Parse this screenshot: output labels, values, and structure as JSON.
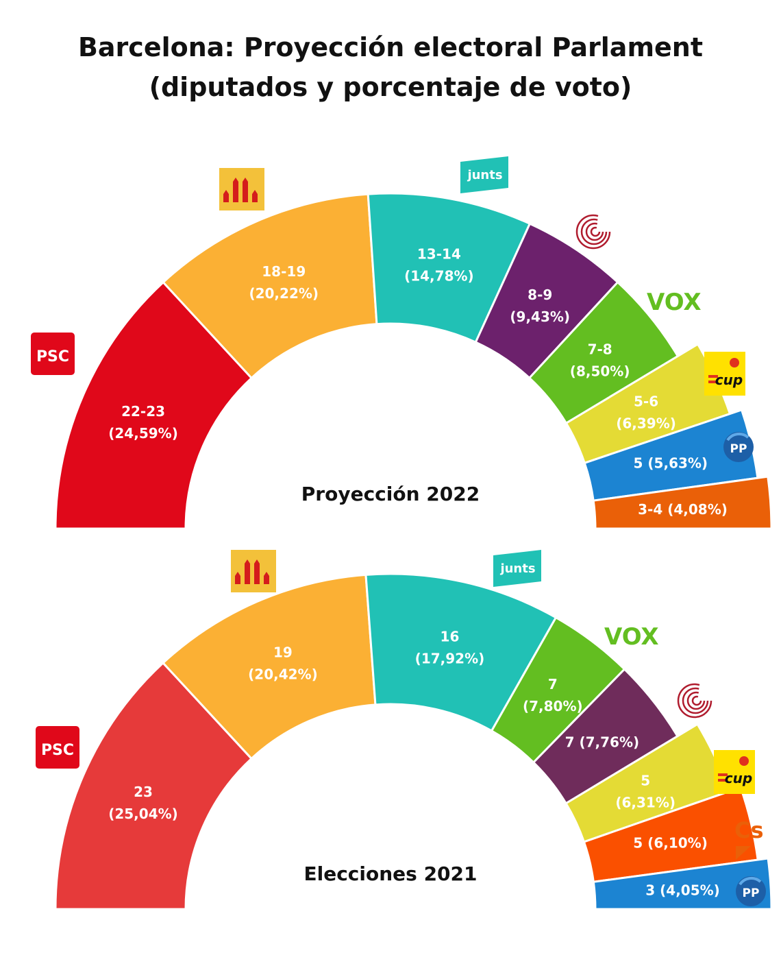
{
  "title_line1": "Barcelona: Proyección electoral Parlament",
  "title_line2": "(diputados y porcentaje de voto)",
  "chart_data": [
    {
      "type": "pie",
      "subtitle": "Proyección 2022",
      "series": [
        {
          "name": "PSC",
          "seats": "22-23",
          "value": 24.59,
          "pct_label": "(24,59%)",
          "color": "#e0081a"
        },
        {
          "name": "ERC",
          "seats": "18-19",
          "value": 20.22,
          "pct_label": "(20,22%)",
          "color": "#fbb034"
        },
        {
          "name": "junts",
          "seats": "13-14",
          "value": 14.78,
          "pct_label": "(14,78%)",
          "color": "#21c1b5"
        },
        {
          "name": "En Comú Podem",
          "seats": "8-9",
          "value": 9.43,
          "pct_label": "(9,43%)",
          "color": "#6c216c"
        },
        {
          "name": "VOX",
          "seats": "7-8",
          "value": 8.5,
          "pct_label": "(8,50%)",
          "color": "#63be21"
        },
        {
          "name": "CUP",
          "seats": "5-6",
          "value": 6.39,
          "pct_label": "(6,39%)",
          "color": "#e4db35"
        },
        {
          "name": "PP",
          "seats": "5",
          "value": 5.63,
          "pct_label": "5 (5,63%)",
          "color": "#1c84d2"
        },
        {
          "name": "Cs",
          "seats": "3-4",
          "value": 4.08,
          "pct_label": "3-4 (4,08%)",
          "color": "#ea6008"
        }
      ]
    },
    {
      "type": "pie",
      "subtitle": "Elecciones 2021",
      "series": [
        {
          "name": "PSC",
          "seats": "23",
          "value": 25.04,
          "pct_label": "(25,04%)",
          "color": "#e63a3a"
        },
        {
          "name": "ERC",
          "seats": "19",
          "value": 20.42,
          "pct_label": "(20,42%)",
          "color": "#fbb034"
        },
        {
          "name": "junts",
          "seats": "16",
          "value": 17.92,
          "pct_label": "(17,92%)",
          "color": "#21c1b5"
        },
        {
          "name": "VOX",
          "seats": "7",
          "value": 7.8,
          "pct_label": "(7,80%)",
          "color": "#63be21"
        },
        {
          "name": "En Comú Podem",
          "seats": "7",
          "value": 7.76,
          "pct_label": "7 (7,76%)",
          "color": "#6f2c5b"
        },
        {
          "name": "CUP",
          "seats": "5",
          "value": 6.31,
          "pct_label": "(6,31%)",
          "color": "#e4db35"
        },
        {
          "name": "Cs",
          "seats": "5",
          "value": 6.1,
          "pct_label": "5 (6,10%)",
          "color": "#fa5000"
        },
        {
          "name": "PP",
          "seats": "3",
          "value": 4.05,
          "pct_label": "3 (4,05%)",
          "color": "#1c84d2"
        }
      ]
    }
  ],
  "logos": {
    "psc_text": "PSC",
    "junts_text": "junts",
    "vox_text": "VOX",
    "cup_text": "cup",
    "pp_text": "PP",
    "cs_text": "Cs",
    "psc_color": "#e0081a",
    "erc_color": "#f3c13a",
    "junts_color": "#21c1b5",
    "vox_color": "#63be21",
    "cup_color": "#ffe100",
    "pp_color": "#1d5fa7",
    "cs_color": "#ea6008",
    "comu_color": "#b01c2e"
  }
}
